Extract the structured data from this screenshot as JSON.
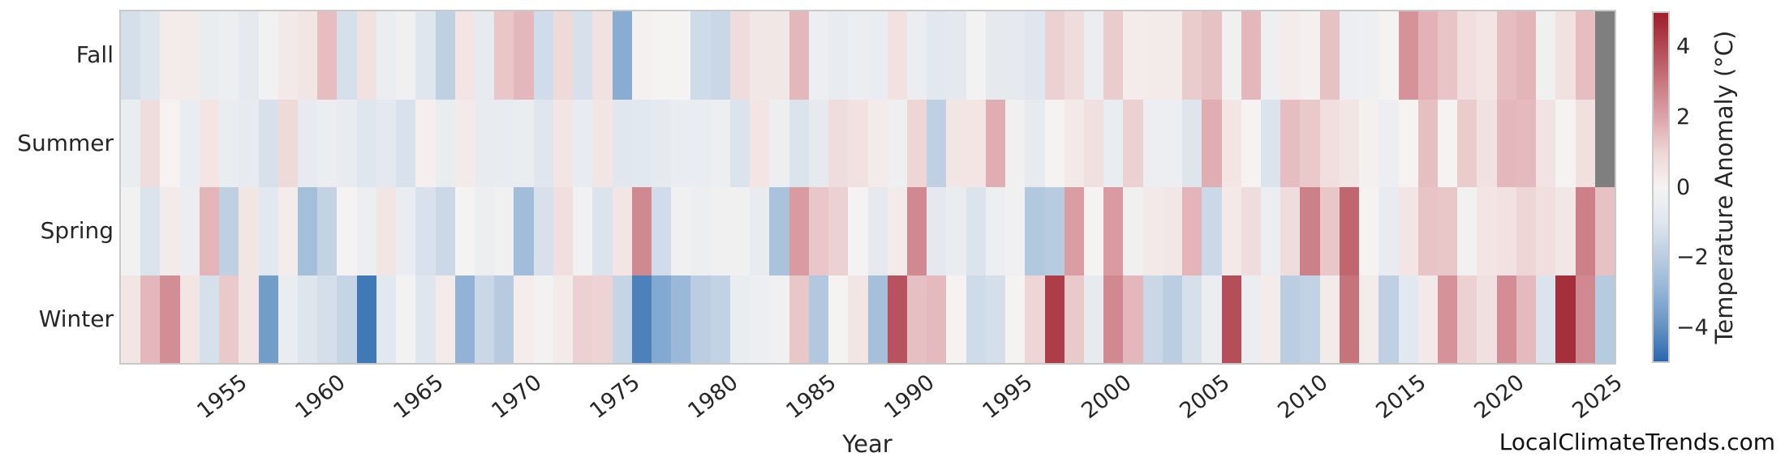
{
  "watermark": "LocalClimateTrends.com",
  "chart_data": {
    "type": "heatmap",
    "xlabel": "Year",
    "x_start_year": 1950,
    "x_end_year": 2025,
    "xticks": [
      1955,
      1960,
      1965,
      1970,
      1975,
      1980,
      1985,
      1990,
      1995,
      2000,
      2005,
      2010,
      2015,
      2020,
      2025
    ],
    "rows_top_to_bottom": [
      "Fall",
      "Summer",
      "Spring",
      "Winter"
    ],
    "series": [
      {
        "name": "Fall",
        "values": [
          -1.3,
          -1.05,
          0.25,
          0.3,
          -0.5,
          -0.4,
          -0.7,
          -0.15,
          0.35,
          0.45,
          1.5,
          -1.25,
          0.6,
          -0.45,
          -0.2,
          -1.0,
          -1.9,
          0.5,
          -0.65,
          1.3,
          1.6,
          -1.4,
          0.85,
          -1.2,
          0.6,
          -3.2,
          0.1,
          0.0,
          -0.05,
          -1.45,
          -1.6,
          0.8,
          0.4,
          0.4,
          1.6,
          -0.35,
          -0.6,
          -0.45,
          -0.55,
          0.6,
          -0.45,
          -0.85,
          -0.8,
          -0.1,
          -0.7,
          -0.7,
          -1.0,
          1.1,
          0.8,
          -0.45,
          1.2,
          0.25,
          0.3,
          0.3,
          1.2,
          1.4,
          -0.2,
          1.6,
          -0.3,
          0.25,
          0.1,
          1.4,
          -0.35,
          -0.3,
          0.0,
          2.4,
          1.7,
          1.35,
          0.7,
          0.5,
          1.5,
          1.65,
          -0.25,
          0.6,
          1.5,
          null
        ]
      },
      {
        "name": "Summer",
        "values": [
          -0.5,
          0.8,
          0.05,
          -0.55,
          0.5,
          -0.5,
          -0.65,
          -1.2,
          0.85,
          -0.65,
          -0.45,
          -0.6,
          -1.0,
          -0.8,
          -1.15,
          0.15,
          -0.5,
          0.3,
          -0.6,
          -0.6,
          -0.5,
          -1.0,
          0.5,
          -0.6,
          0.45,
          -0.95,
          -0.85,
          -0.7,
          -0.55,
          -0.5,
          -0.4,
          -1.1,
          0.5,
          -0.4,
          -1.1,
          -0.7,
          0.8,
          0.6,
          0.3,
          -0.3,
          1.0,
          -1.9,
          0.45,
          0.5,
          1.8,
          -0.25,
          -0.65,
          0.0,
          0.35,
          0.65,
          -0.55,
          1.1,
          -0.35,
          -0.35,
          -1.05,
          1.8,
          0.5,
          0.05,
          -1.1,
          1.5,
          1.25,
          0.7,
          0.5,
          0.1,
          -0.35,
          0.05,
          1.45,
          0.0,
          1.2,
          0.6,
          1.6,
          1.55,
          0.55,
          0.05,
          0.65,
          null
        ]
      },
      {
        "name": "Spring",
        "values": [
          -0.15,
          -1.1,
          0.3,
          -0.45,
          1.65,
          -1.9,
          0.45,
          -0.85,
          0.25,
          -2.55,
          -1.75,
          -0.05,
          -0.35,
          0.45,
          -0.55,
          -1.15,
          -1.55,
          0.0,
          -0.4,
          -0.2,
          -2.6,
          -1.2,
          0.7,
          -0.15,
          -1.1,
          0.5,
          2.6,
          -1.4,
          -0.2,
          -0.4,
          -0.25,
          -0.2,
          -0.6,
          -2.4,
          2.2,
          1.3,
          1.1,
          -0.05,
          -0.7,
          0.3,
          2.6,
          -0.75,
          -0.5,
          -1.1,
          -0.4,
          -0.2,
          -2.2,
          -2.05,
          2.15,
          0.0,
          2.2,
          -0.2,
          0.35,
          0.4,
          1.65,
          -1.55,
          0.35,
          0.8,
          -0.45,
          0.8,
          2.8,
          1.3,
          3.4,
          0.05,
          -0.6,
          0.5,
          1.35,
          1.3,
          -0.15,
          0.5,
          0.6,
          1.0,
          0.7,
          0.4,
          2.8,
          1.4
        ]
      },
      {
        "name": "Winter",
        "values": [
          0.45,
          1.6,
          2.5,
          0.5,
          -1.25,
          1.25,
          0.45,
          -3.7,
          -0.5,
          -1.05,
          -1.3,
          -1.7,
          -4.6,
          -0.85,
          -0.1,
          -1.0,
          0.3,
          -3.0,
          -1.6,
          -2.1,
          0.2,
          -0.1,
          0.3,
          1.1,
          1.05,
          -1.7,
          -4.4,
          -3.3,
          -2.8,
          -2.0,
          -1.8,
          -0.5,
          -0.35,
          -0.2,
          1.3,
          -2.2,
          0.0,
          0.45,
          -2.5,
          3.8,
          1.45,
          1.55,
          0.05,
          -1.45,
          -1.3,
          0.0,
          1.0,
          4.3,
          1.25,
          -0.65,
          2.6,
          1.6,
          -1.6,
          -2.0,
          -1.25,
          -0.45,
          3.9,
          -0.45,
          0.25,
          -2.0,
          -1.8,
          0.3,
          3.1,
          0.25,
          -1.9,
          -0.85,
          0.35,
          2.4,
          1.1,
          0.65,
          2.5,
          1.55,
          -1.1,
          4.6,
          2.6,
          -2.1
        ]
      }
    ],
    "missing_color": "#7f7f7f",
    "colorbar": {
      "label": "Temperature Anomaly (°C)",
      "vmin": -5,
      "vmax": 5,
      "tick_values": [
        4,
        2,
        0,
        -2,
        -4
      ],
      "tick_labels": [
        "4",
        "2",
        "0",
        "−2",
        "−4"
      ],
      "stops": [
        {
          "v": -5,
          "c": "#2a67ae"
        },
        {
          "v": -4,
          "c": "#6493c3"
        },
        {
          "v": -3,
          "c": "#92b3d5"
        },
        {
          "v": -2,
          "c": "#bacde1"
        },
        {
          "v": -1,
          "c": "#dfe6ee"
        },
        {
          "v": 0,
          "c": "#f5f3f2"
        },
        {
          "v": 1,
          "c": "#eed6d6"
        },
        {
          "v": 2,
          "c": "#dda3aa"
        },
        {
          "v": 3,
          "c": "#c87880"
        },
        {
          "v": 4,
          "c": "#b24a55"
        },
        {
          "v": 5,
          "c": "#9e1d2c"
        }
      ]
    }
  }
}
